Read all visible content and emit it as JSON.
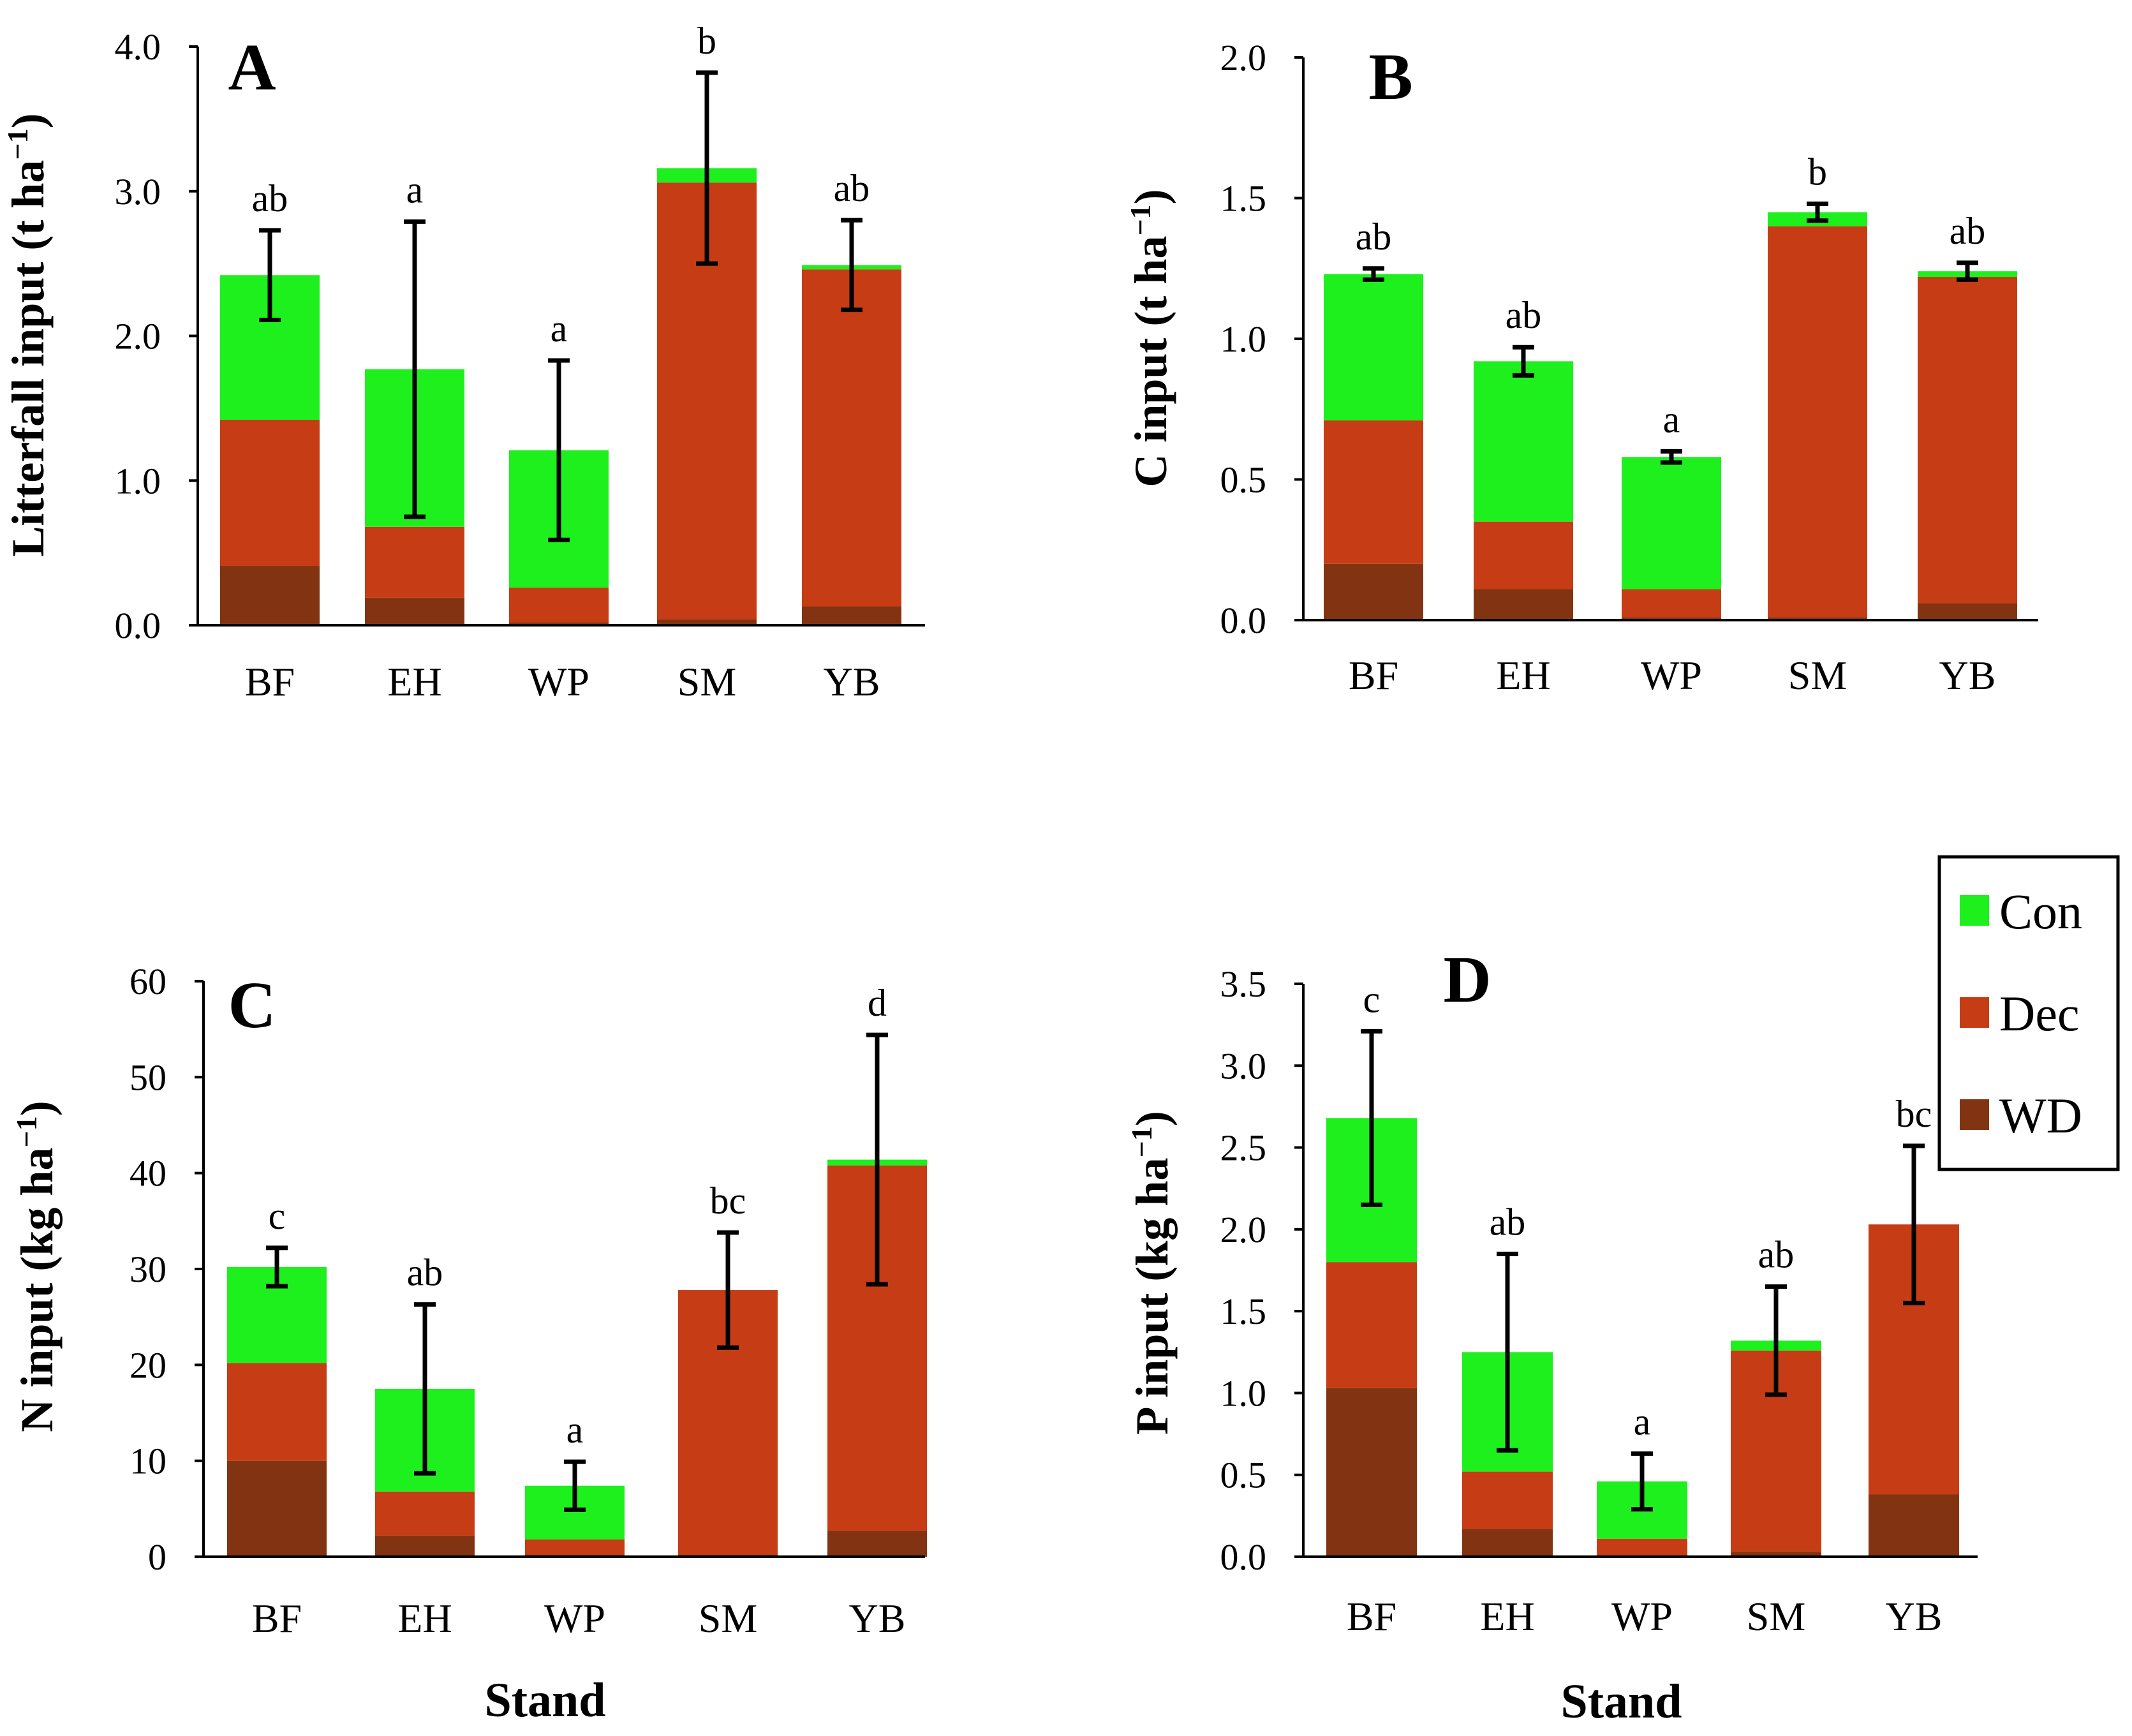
{
  "legend": {
    "items": [
      {
        "key": "Con",
        "label": "Con",
        "color": "#1EF01E"
      },
      {
        "key": "Dec",
        "label": "Dec",
        "color": "#C63C14"
      },
      {
        "key": "WD",
        "label": "WD",
        "color": "#823412"
      }
    ]
  },
  "chart_data": [
    {
      "type": "bar",
      "stacked": true,
      "panel_label": "A",
      "ylabel_main": "Litterfall input (t ha",
      "ylabel_sup": "−1",
      "ylabel_close": ")",
      "xlabel": "",
      "ylim": [
        0,
        4.0
      ],
      "yticks": [
        "0.0",
        "1.0",
        "2.0",
        "3.0",
        "4.0"
      ],
      "categories": [
        "BF",
        "EH",
        "WP",
        "SM",
        "YB"
      ],
      "series": [
        {
          "name": "WD",
          "values": [
            0.41,
            0.19,
            0.02,
            0.04,
            0.13
          ]
        },
        {
          "name": "Dec",
          "values": [
            1.01,
            0.49,
            0.24,
            3.02,
            2.33
          ]
        },
        {
          "name": "Con",
          "values": [
            1.0,
            1.09,
            0.95,
            0.1,
            0.03
          ]
        }
      ],
      "errors": [
        0.31,
        1.02,
        0.62,
        0.66,
        0.31
      ],
      "letters": [
        "ab",
        "a",
        "a",
        "b",
        "ab"
      ]
    },
    {
      "type": "bar",
      "stacked": true,
      "panel_label": "B",
      "ylabel_main": "C input (t ha",
      "ylabel_sup": "−1",
      "ylabel_close": ")",
      "xlabel": "",
      "ylim": [
        0,
        2.0
      ],
      "yticks": [
        "0.0",
        "0.5",
        "1.0",
        "1.5",
        "2.0"
      ],
      "categories": [
        "BF",
        "EH",
        "WP",
        "SM",
        "YB"
      ],
      "series": [
        {
          "name": "WD",
          "values": [
            0.2,
            0.11,
            0.01,
            0.01,
            0.06
          ]
        },
        {
          "name": "Dec",
          "values": [
            0.51,
            0.24,
            0.1,
            1.39,
            1.16
          ]
        },
        {
          "name": "Con",
          "values": [
            0.52,
            0.57,
            0.47,
            0.05,
            0.02
          ]
        }
      ],
      "errors": [
        0.02,
        0.05,
        0.02,
        0.03,
        0.03
      ],
      "letters": [
        "ab",
        "ab",
        "a",
        "b",
        "ab"
      ]
    },
    {
      "type": "bar",
      "stacked": true,
      "panel_label": "C",
      "ylabel_main": "N input (kg ha",
      "ylabel_sup": "−1",
      "ylabel_close": ")",
      "xlabel": "Stand",
      "ylim": [
        0,
        60
      ],
      "yticks": [
        "0",
        "10",
        "20",
        "30",
        "40",
        "50",
        "60"
      ],
      "categories": [
        "BF",
        "EH",
        "WP",
        "SM",
        "YB"
      ],
      "series": [
        {
          "name": "WD",
          "values": [
            10.0,
            2.2,
            0.2,
            0.2,
            2.7
          ]
        },
        {
          "name": "Dec",
          "values": [
            10.2,
            4.6,
            1.6,
            27.6,
            38.1
          ]
        },
        {
          "name": "Con",
          "values": [
            10.0,
            10.7,
            5.6,
            0.0,
            0.6
          ]
        }
      ],
      "errors": [
        2.0,
        8.8,
        2.5,
        6.0,
        13.0
      ],
      "letters": [
        "c",
        "ab",
        "a",
        "bc",
        "d"
      ]
    },
    {
      "type": "bar",
      "stacked": true,
      "panel_label": "D",
      "ylabel_main": "P input (kg ha",
      "ylabel_sup": "−1",
      "ylabel_close": ")",
      "xlabel": "Stand",
      "ylim": [
        0,
        3.5
      ],
      "yticks": [
        "0.0",
        "0.5",
        "1.0",
        "1.5",
        "2.0",
        "2.5",
        "3.0",
        "3.5"
      ],
      "categories": [
        "BF",
        "EH",
        "WP",
        "SM",
        "YB"
      ],
      "series": [
        {
          "name": "WD",
          "values": [
            1.03,
            0.17,
            0.01,
            0.03,
            0.38
          ]
        },
        {
          "name": "Dec",
          "values": [
            0.77,
            0.35,
            0.1,
            1.23,
            1.65
          ]
        },
        {
          "name": "Con",
          "values": [
            0.88,
            0.73,
            0.35,
            0.06,
            0.0
          ]
        }
      ],
      "errors": [
        0.53,
        0.6,
        0.17,
        0.33,
        0.48
      ],
      "letters": [
        "c",
        "ab",
        "a",
        "ab",
        "bc"
      ]
    }
  ]
}
